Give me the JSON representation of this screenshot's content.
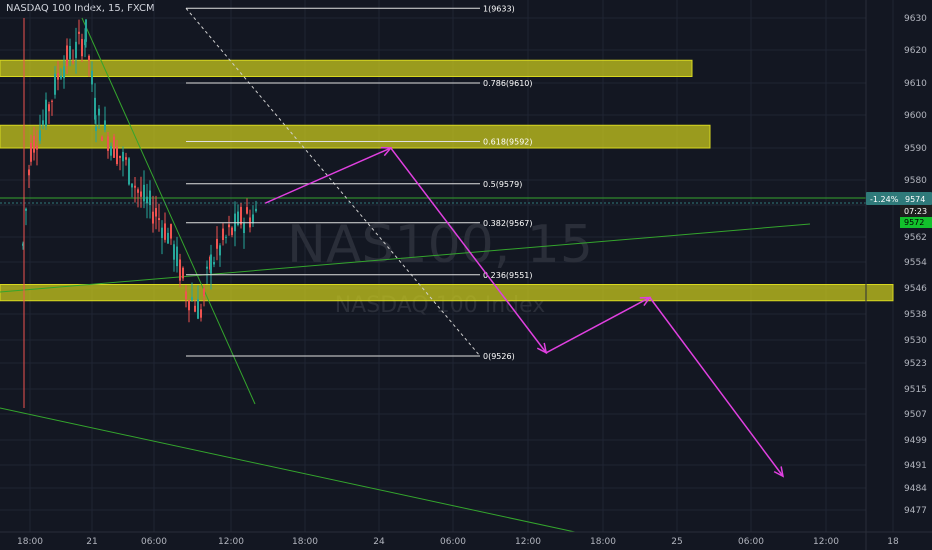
{
  "header": {
    "title": "NASDAQ 100 Index, 15, FXCM"
  },
  "watermark": {
    "symbol": "NAS100, 15",
    "description": "NASDAQ 100 Index"
  },
  "price_badges": {
    "current": {
      "change": "-1.24%",
      "price": "9574",
      "color": "#2f7a7a"
    },
    "timer": {
      "text": "07:23",
      "color": "#1e1e1e"
    },
    "last": {
      "text": "9572",
      "color": "#12c12c"
    }
  },
  "colors": {
    "background": "#131722",
    "grid": "#1f2433",
    "candle_up": "#26a69a",
    "candle_down": "#ef5350",
    "zone_fill": "#c8c81e",
    "trend": "#34a52d",
    "projection": "#e040e0",
    "fib": "#e0e0e0"
  },
  "chart_data": {
    "type": "candlestick",
    "y_ticks": [
      "9630",
      "9620",
      "9610",
      "9600",
      "9590",
      "9580",
      "9572",
      "9562",
      "9554",
      "9546",
      "9538",
      "9530",
      "9523",
      "9515",
      "9507",
      "9499",
      "9491",
      "9484",
      "9477"
    ],
    "x_ticks": [
      "18:00",
      "21",
      "06:00",
      "12:00",
      "18:00",
      "24",
      "06:00",
      "12:00",
      "18:00",
      "25",
      "06:00",
      "12:00",
      "18"
    ],
    "fib_levels": [
      {
        "label": "1(9633)",
        "price": 9633
      },
      {
        "label": "0.786(9610)",
        "price": 9610
      },
      {
        "label": "0.618(9592)",
        "price": 9592
      },
      {
        "label": "0.5(9579)",
        "price": 9579
      },
      {
        "label": "0.382(9567)",
        "price": 9567
      },
      {
        "label": "0.236(9551)",
        "price": 9551
      },
      {
        "label": "0(9526)",
        "price": 9526
      }
    ],
    "zones": [
      {
        "top": 9617,
        "bottom": 9612
      },
      {
        "top": 9597,
        "bottom": 9590
      },
      {
        "top": 9548,
        "bottom": 9543
      }
    ],
    "projection_path": [
      [
        0.5,
        9573
      ],
      [
        2.2,
        9590
      ],
      [
        4.3,
        9527
      ],
      [
        5.7,
        9544
      ],
      [
        7.5,
        9489
      ]
    ]
  }
}
